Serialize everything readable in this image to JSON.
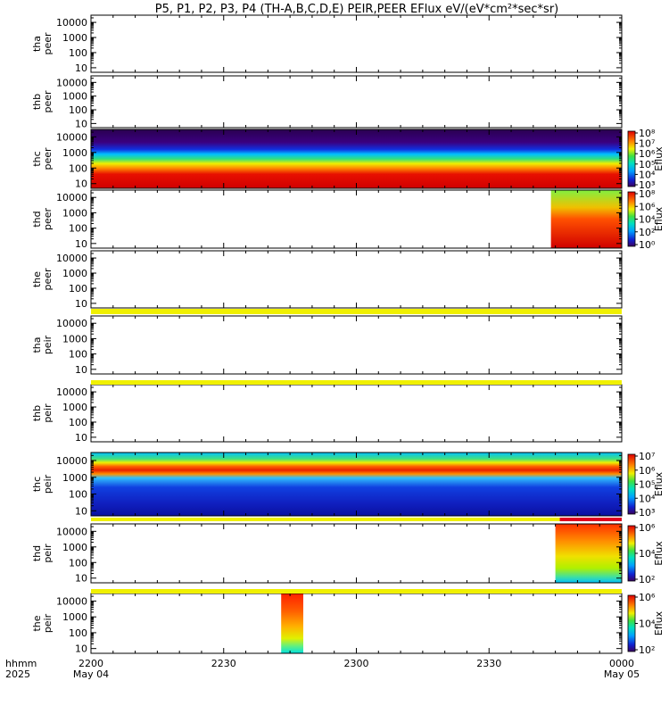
{
  "chart_data": {
    "type": "heatmap",
    "title": "P5, P1, P2, P3, P4 (TH-A,B,C,D,E) PEIR,PEER EFlux eV/(eV*cm²*sec*sr)",
    "x_axis": {
      "ticks": [
        "2200",
        "2230",
        "2300",
        "2330",
        "0000"
      ],
      "date_labels": [
        "May 04",
        "May 05"
      ],
      "row_labels": [
        "hhmm",
        "2025"
      ],
      "range": [
        "2025-05-04 22:00",
        "2025-05-05 00:00"
      ]
    },
    "y_scale": "log",
    "y_ticks": [
      "10",
      "100",
      "1000",
      "10000"
    ],
    "colorbar_label": "Eflux",
    "panels": [
      {
        "probe": "tha",
        "species": "peer",
        "has_data": false,
        "colorbar": null
      },
      {
        "probe": "thb",
        "species": "peer",
        "has_data": false,
        "colorbar": null
      },
      {
        "probe": "thc",
        "species": "peer",
        "has_data": true,
        "colorbar": [
          "10³",
          "10⁴",
          "10⁵",
          "10⁶",
          "10⁷",
          "10⁸"
        ],
        "data_range": [
          "22:00",
          "00:00"
        ]
      },
      {
        "probe": "thd",
        "species": "peer",
        "has_data": true,
        "colorbar": [
          "10⁰",
          "10²",
          "10⁴",
          "10⁶",
          "10⁸"
        ],
        "data_range": [
          "23:44",
          "00:00"
        ]
      },
      {
        "probe": "the",
        "species": "peer",
        "has_data": false,
        "colorbar": null
      },
      {
        "probe": "tha",
        "species": "peir",
        "has_data": false,
        "colorbar": null
      },
      {
        "probe": "thb",
        "species": "peir",
        "has_data": false,
        "colorbar": null
      },
      {
        "probe": "thc",
        "species": "peir",
        "has_data": true,
        "colorbar": [
          "10³",
          "10⁴",
          "10⁵",
          "10⁶",
          "10⁷"
        ],
        "data_range": [
          "22:00",
          "00:00"
        ]
      },
      {
        "probe": "thd",
        "species": "peir",
        "has_data": true,
        "colorbar": [
          "10²",
          "10⁴",
          "10⁶"
        ],
        "data_range": [
          "23:45",
          "00:00"
        ]
      },
      {
        "probe": "the",
        "species": "peir",
        "has_data": true,
        "colorbar": [
          "10²",
          "10⁴",
          "10⁶"
        ],
        "data_range": [
          "22:43",
          "22:48"
        ]
      }
    ]
  }
}
